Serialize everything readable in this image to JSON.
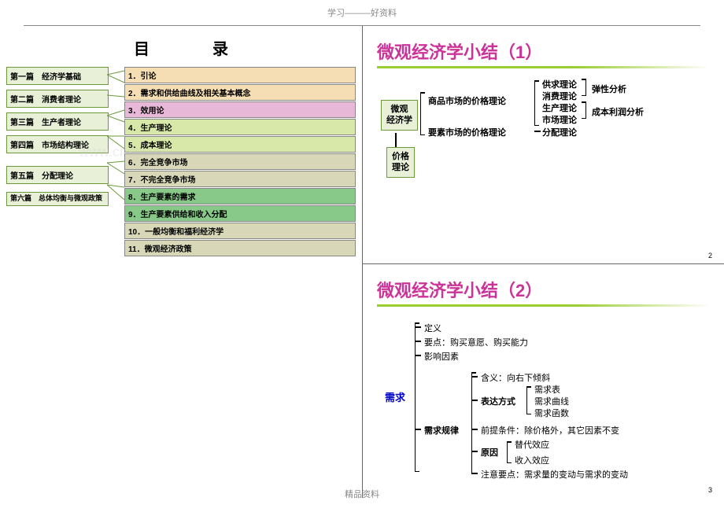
{
  "header": "学习———好资料",
  "footer": "精品资料",
  "watermark": "www.cnshu.cn",
  "panel1": {
    "title": "目　录",
    "sections": [
      {
        "label": "第一篇　经济学基础",
        "color": "#f5deb3"
      },
      {
        "label": "第二篇　消费者理论",
        "color": "#e8b8d8"
      },
      {
        "label": "第三篇　生产者理论",
        "color": "#d8e8a8"
      },
      {
        "label": "第四篇　市场结构理论",
        "color": "#d8d8b8"
      },
      {
        "label": "第五篇　分配理论",
        "color": "#88c888"
      },
      {
        "label": "第六篇　总体均衡与微观政策",
        "color": "#d8d8b8"
      }
    ],
    "chapters": [
      {
        "n": "1．",
        "t": "引论",
        "color": "#f5deb3"
      },
      {
        "n": "2．",
        "t": "需求和供给曲线及相关基本概念",
        "color": "#f5deb3"
      },
      {
        "n": "3．",
        "t": "效用论",
        "color": "#e8b8d8"
      },
      {
        "n": "4．",
        "t": "生产理论",
        "color": "#d8e8a8"
      },
      {
        "n": "5．",
        "t": "成本理论",
        "color": "#d8e8a8"
      },
      {
        "n": "6．",
        "t": "完全竞争市场",
        "color": "#d8d8b8"
      },
      {
        "n": "7．",
        "t": "不完全竞争市场",
        "color": "#d8d8b8"
      },
      {
        "n": "8．",
        "t": "生产要素的需求",
        "color": "#88c888"
      },
      {
        "n": "9．",
        "t": "生产要素供给和收入分配",
        "color": "#88c888"
      },
      {
        "n": "10．",
        "t": "一般均衡和福利经济学",
        "color": "#d8d8b8"
      },
      {
        "n": "11．",
        "t": "微观经济政策",
        "color": "#d8d8b8"
      }
    ]
  },
  "panel2": {
    "title": "微观经济学小结（1）",
    "title_color": "#cc3399",
    "root1": "微观",
    "root2": "经济学",
    "sub": "价格\n理论",
    "mid1": "商品市场的价格理论",
    "mid2": "要素市场的价格理论",
    "r1": "供求理论",
    "r2": "消费理论",
    "r3": "生产理论",
    "r4": "市场理论",
    "r5": "分配理论",
    "rr1": "弹性分析",
    "rr2": "成本利润分析",
    "pgnum": "2"
  },
  "panel3": {
    "title": "微观经济学小结（2）",
    "title_color": "#cc3399",
    "root": "需求",
    "l1": "定义",
    "l2": "要点：购买意愿、购买能力",
    "l3": "影响因素",
    "l4": "需求规律",
    "m1": "含义：向右下倾斜",
    "m2": "表达方式",
    "m3": "前提条件：除价格外，其它因素不变",
    "m4": "原因",
    "m5": "注意要点：需求量的变动与需求的变动",
    "r1": "需求表",
    "r2": "需求曲线",
    "r3": "需求函数",
    "r4": "替代效应",
    "r5": "收入效应",
    "pgnum": "3"
  }
}
